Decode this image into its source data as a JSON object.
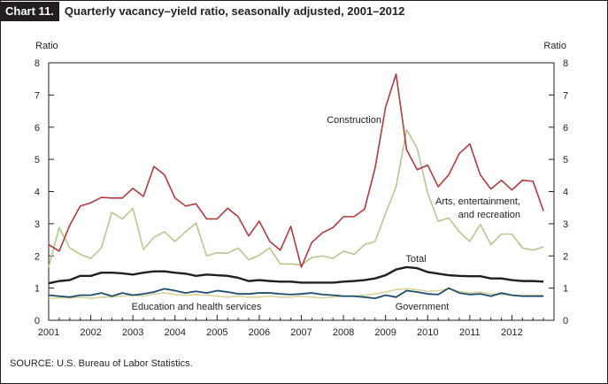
{
  "header": {
    "chart_number": "Chart 11.",
    "title": "Quarterly vacancy–yield ratio, seasonally adjusted, 2001–2012"
  },
  "source_note": "SOURCE:  U.S. Bureau of Labor Statistics.",
  "chart_data": {
    "type": "line",
    "title": "Quarterly vacancy–yield ratio, seasonally adjusted, 2001–2012",
    "ylabel_left": "Ratio",
    "ylabel_right": "Ratio",
    "ylim": [
      0,
      8
    ],
    "yticks": [
      0,
      1,
      2,
      3,
      4,
      5,
      6,
      7,
      8
    ],
    "xlim": [
      2001,
      2013
    ],
    "xtick_labels": [
      "2001",
      "2002",
      "2003",
      "2004",
      "2005",
      "2006",
      "2007",
      "2008",
      "2009",
      "2010",
      "2011",
      "2012"
    ],
    "grid": false,
    "x_quarters": [
      2001.0,
      2001.25,
      2001.5,
      2001.75,
      2002.0,
      2002.25,
      2002.5,
      2002.75,
      2003.0,
      2003.25,
      2003.5,
      2003.75,
      2004.0,
      2004.25,
      2004.5,
      2004.75,
      2005.0,
      2005.25,
      2005.5,
      2005.75,
      2006.0,
      2006.25,
      2006.5,
      2006.75,
      2007.0,
      2007.25,
      2007.5,
      2007.75,
      2008.0,
      2008.25,
      2008.5,
      2008.75,
      2009.0,
      2009.25,
      2009.5,
      2009.75,
      2010.0,
      2010.25,
      2010.5,
      2010.75,
      2011.0,
      2011.25,
      2011.5,
      2011.75,
      2012.0,
      2012.25,
      2012.5,
      2012.75
    ],
    "series": [
      {
        "name": "Construction",
        "color": "#b53a3c",
        "values": [
          2.35,
          2.15,
          2.95,
          3.55,
          3.65,
          3.82,
          3.8,
          3.8,
          4.1,
          3.85,
          4.78,
          4.52,
          3.8,
          3.55,
          3.62,
          3.15,
          3.15,
          3.48,
          3.22,
          2.62,
          3.08,
          2.45,
          2.18,
          2.92,
          1.65,
          2.42,
          2.72,
          2.88,
          3.22,
          3.22,
          3.45,
          4.72,
          6.62,
          7.65,
          5.3,
          4.68,
          4.82,
          4.15,
          4.52,
          5.18,
          5.48,
          4.52,
          4.08,
          4.35,
          4.05,
          4.35,
          4.32,
          3.4
        ]
      },
      {
        "name": "Arts, entertainment, and recreation",
        "color": "#b5c98e",
        "values": [
          1.65,
          2.88,
          2.25,
          2.05,
          1.92,
          2.25,
          3.35,
          3.15,
          3.48,
          2.2,
          2.58,
          2.75,
          2.45,
          2.75,
          3.02,
          2.0,
          2.1,
          2.08,
          2.25,
          1.88,
          2.02,
          2.25,
          1.75,
          1.75,
          1.72,
          1.95,
          2.0,
          1.92,
          2.15,
          2.05,
          2.35,
          2.45,
          3.32,
          4.15,
          5.92,
          5.35,
          3.95,
          3.08,
          3.18,
          2.75,
          2.45,
          2.98,
          2.35,
          2.68,
          2.68,
          2.25,
          2.18,
          2.28
        ]
      },
      {
        "name": "Total",
        "color": "#231f20",
        "values": [
          1.15,
          1.22,
          1.25,
          1.38,
          1.38,
          1.48,
          1.48,
          1.46,
          1.42,
          1.48,
          1.52,
          1.52,
          1.48,
          1.45,
          1.38,
          1.42,
          1.4,
          1.38,
          1.32,
          1.22,
          1.25,
          1.22,
          1.2,
          1.2,
          1.17,
          1.17,
          1.17,
          1.17,
          1.2,
          1.22,
          1.25,
          1.3,
          1.4,
          1.58,
          1.65,
          1.62,
          1.5,
          1.45,
          1.4,
          1.38,
          1.37,
          1.37,
          1.3,
          1.3,
          1.25,
          1.22,
          1.22,
          1.2
        ]
      },
      {
        "name": "Education and health services",
        "color": "#1f4d6e",
        "values": [
          0.78,
          0.75,
          0.72,
          0.78,
          0.78,
          0.85,
          0.75,
          0.85,
          0.78,
          0.82,
          0.88,
          0.98,
          0.92,
          0.85,
          0.9,
          0.85,
          0.92,
          0.88,
          0.82,
          0.82,
          0.85,
          0.85,
          0.82,
          0.8,
          0.82,
          0.85,
          0.8,
          0.78,
          0.75,
          0.75,
          0.72,
          0.68,
          0.78,
          0.72,
          0.92,
          0.88,
          0.82,
          0.8,
          1.0,
          0.85,
          0.8,
          0.82,
          0.75,
          0.85,
          0.78,
          0.75,
          0.75,
          0.75
        ]
      },
      {
        "name": "Government",
        "color": "#d8d49a",
        "values": [
          0.68,
          0.7,
          0.7,
          0.72,
          0.68,
          0.72,
          0.72,
          0.75,
          0.78,
          0.75,
          0.82,
          0.85,
          0.8,
          0.78,
          0.8,
          0.78,
          0.75,
          0.72,
          0.75,
          0.72,
          0.72,
          0.75,
          0.72,
          0.72,
          0.75,
          0.72,
          0.7,
          0.72,
          0.75,
          0.75,
          0.78,
          0.82,
          0.88,
          0.95,
          0.98,
          0.95,
          0.9,
          0.92,
          0.98,
          0.9,
          0.85,
          0.88,
          0.82,
          0.8,
          0.78,
          0.78,
          0.78,
          0.78
        ]
      }
    ]
  }
}
